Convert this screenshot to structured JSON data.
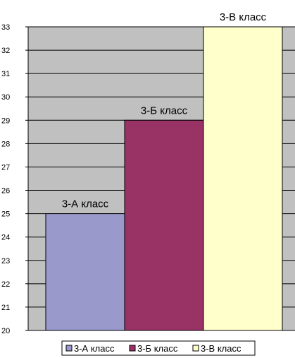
{
  "chart_data": {
    "type": "bar",
    "categories": [
      "3-А класс",
      "3-Б класс",
      "3-В класс"
    ],
    "values": [
      25,
      29,
      33
    ],
    "colors": [
      "#9999cc",
      "#993366",
      "#ffffcc"
    ],
    "ylim": [
      20,
      33
    ],
    "yticks": [
      "20",
      "21",
      "22",
      "23",
      "24",
      "25",
      "26",
      "27",
      "28",
      "29",
      "30",
      "31",
      "32",
      "33"
    ],
    "title": "",
    "xlabel": "",
    "ylabel": "",
    "grid": true,
    "plot_background": "#c0c0c0",
    "legend": {
      "position": "bottom",
      "entries": [
        "3-А класс",
        "3-Б класс",
        "3-В класс"
      ]
    }
  }
}
